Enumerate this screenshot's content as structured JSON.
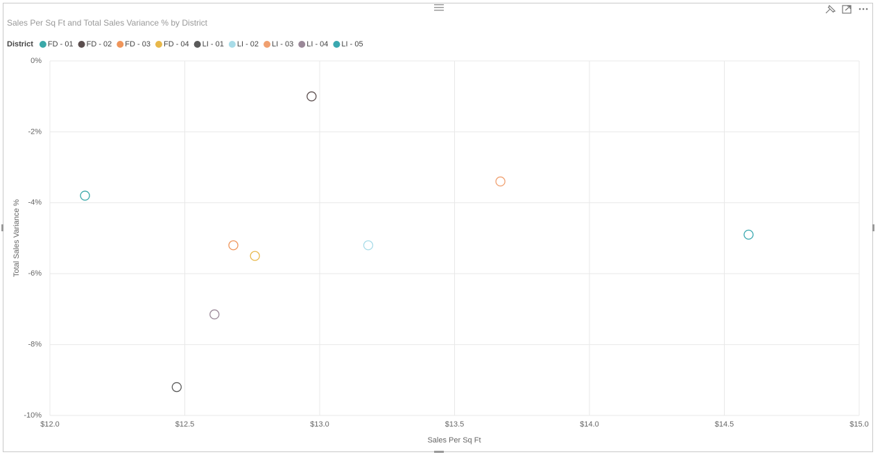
{
  "chart_data": {
    "type": "scatter",
    "title": "Sales Per Sq Ft and Total Sales Variance % by District",
    "legend_title": "District",
    "x_label": "Sales Per Sq Ft",
    "y_label": "Total Sales Variance %",
    "xlim": [
      12.0,
      15.0
    ],
    "ylim": [
      -10,
      0
    ],
    "xticks": [
      {
        "value": 12.0,
        "label": "$12.0"
      },
      {
        "value": 12.5,
        "label": "$12.5"
      },
      {
        "value": 13.0,
        "label": "$13.0"
      },
      {
        "value": 13.5,
        "label": "$13.5"
      },
      {
        "value": 14.0,
        "label": "$14.0"
      },
      {
        "value": 14.5,
        "label": "$14.5"
      },
      {
        "value": 15.0,
        "label": "$15.0"
      }
    ],
    "yticks": [
      {
        "value": 0,
        "label": "0%"
      },
      {
        "value": -2,
        "label": "-2%"
      },
      {
        "value": -4,
        "label": "-4%"
      },
      {
        "value": -6,
        "label": "-6%"
      },
      {
        "value": -8,
        "label": "-8%"
      },
      {
        "value": -10,
        "label": "-10%"
      }
    ],
    "grid": true,
    "series": [
      {
        "name": "FD - 01",
        "color": "#3aa8a8",
        "x": [
          12.13
        ],
        "values": [
          -3.8
        ]
      },
      {
        "name": "FD - 02",
        "color": "#5b4e4e",
        "x": [
          12.97
        ],
        "values": [
          -1.0
        ]
      },
      {
        "name": "FD - 03",
        "color": "#ef955a",
        "x": [
          12.68
        ],
        "values": [
          -5.2
        ]
      },
      {
        "name": "FD - 04",
        "color": "#e8b84a",
        "x": [
          12.76
        ],
        "values": [
          -5.5
        ]
      },
      {
        "name": "LI - 01",
        "color": "#5a5a5a",
        "x": [
          12.47
        ],
        "values": [
          -9.2
        ]
      },
      {
        "name": "LI - 02",
        "color": "#a8dce8",
        "x": [
          13.18
        ],
        "values": [
          -5.2
        ]
      },
      {
        "name": "LI - 03",
        "color": "#f0a070",
        "x": [
          13.67
        ],
        "values": [
          -3.4
        ]
      },
      {
        "name": "LI - 04",
        "color": "#9a8898",
        "x": [
          12.61
        ],
        "values": [
          -7.15
        ]
      },
      {
        "name": "LI - 05",
        "color": "#3aa8b0",
        "x": [
          14.59
        ],
        "values": [
          -4.9
        ]
      }
    ]
  }
}
